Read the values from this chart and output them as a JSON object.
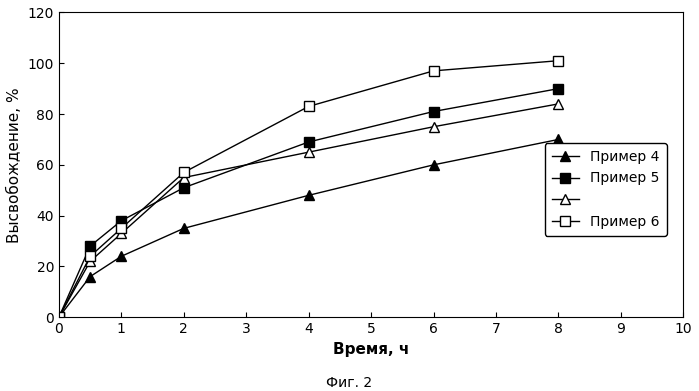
{
  "xlabel": "Время, ч",
  "ylabel": "Высвобождение, %",
  "caption": "Фиг. 2",
  "xlim": [
    0,
    10
  ],
  "ylim": [
    0,
    120
  ],
  "xticks": [
    0,
    1,
    2,
    3,
    4,
    5,
    6,
    7,
    8,
    9,
    10
  ],
  "yticks": [
    0,
    20,
    40,
    60,
    80,
    100,
    120
  ],
  "series": [
    {
      "label": "Пример 4",
      "x": [
        0,
        0.5,
        1.0,
        2.0,
        4.0,
        6.0,
        8.0
      ],
      "y": [
        0,
        16,
        24,
        35,
        48,
        60,
        70
      ],
      "marker": "^",
      "mfc": "black",
      "mec": "black",
      "ms": 7
    },
    {
      "label": "Пример 5",
      "x": [
        0,
        0.5,
        1.0,
        2.0,
        4.0,
        6.0,
        8.0
      ],
      "y": [
        0,
        28,
        38,
        51,
        69,
        81,
        90
      ],
      "marker": "s",
      "mfc": "black",
      "mec": "black",
      "ms": 7
    },
    {
      "label": "",
      "x": [
        0,
        0.5,
        1.0,
        2.0,
        4.0,
        6.0,
        8.0
      ],
      "y": [
        0,
        22,
        33,
        55,
        65,
        75,
        84
      ],
      "marker": "^",
      "mfc": "white",
      "mec": "black",
      "ms": 7
    },
    {
      "label": "Пример 6",
      "x": [
        0,
        0.5,
        1.0,
        2.0,
        4.0,
        6.0,
        8.0
      ],
      "y": [
        0,
        24,
        35,
        57,
        83,
        97,
        101
      ],
      "marker": "s",
      "mfc": "white",
      "mec": "black",
      "ms": 7
    }
  ],
  "legend_entries": [
    {
      "marker": "^",
      "mfc": "black",
      "mec": "black",
      "ms": 7,
      "label": "Пример 4"
    },
    {
      "marker": "s",
      "mfc": "black",
      "mec": "black",
      "ms": 7,
      "label": "Пример 5"
    },
    {
      "marker": "^",
      "mfc": "white",
      "mec": "black",
      "ms": 7,
      "label": ""
    },
    {
      "marker": "s",
      "mfc": "white",
      "mec": "black",
      "ms": 7,
      "label": "Пример 6"
    }
  ],
  "background_color": "#ffffff",
  "font_size": 10,
  "label_fontsize": 11,
  "caption_fontsize": 10,
  "linewidth": 1.0
}
